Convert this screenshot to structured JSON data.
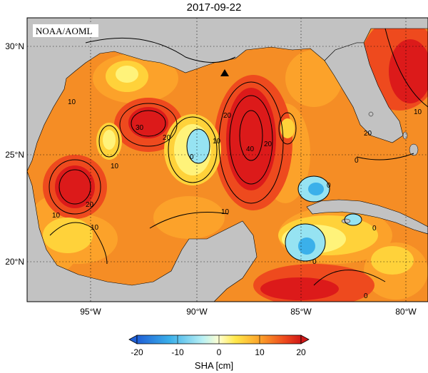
{
  "title": "2017-09-22",
  "credit": "NOAA/AOML",
  "lat_labels": [
    "30°N",
    "25°N",
    "20°N"
  ],
  "lon_labels": [
    "95°W",
    "90°W",
    "85°W",
    "80°W"
  ],
  "colorbar": {
    "label": "SHA [cm]",
    "ticks": [
      "-20",
      "-10",
      "0",
      "10",
      "20"
    ],
    "colors": [
      "#1f5fd6",
      "#3b8fe6",
      "#5fc0ee",
      "#96e3f2",
      "#c6f4f6",
      "#fffdd0",
      "#fff37a",
      "#ffd23a",
      "#fca22a",
      "#f47a22",
      "#ee4a1e",
      "#dc1a1a"
    ]
  },
  "colors": {
    "land": "#c2c2c2",
    "ocean_base": "#f58d25"
  },
  "contour_labels": [
    "10",
    "10",
    "10",
    "10",
    "10",
    "10",
    "20",
    "20",
    "20",
    "20",
    "30",
    "40",
    "0",
    "0",
    "0",
    "0",
    "0",
    "0",
    "10",
    "20"
  ],
  "marker": "triangle"
}
